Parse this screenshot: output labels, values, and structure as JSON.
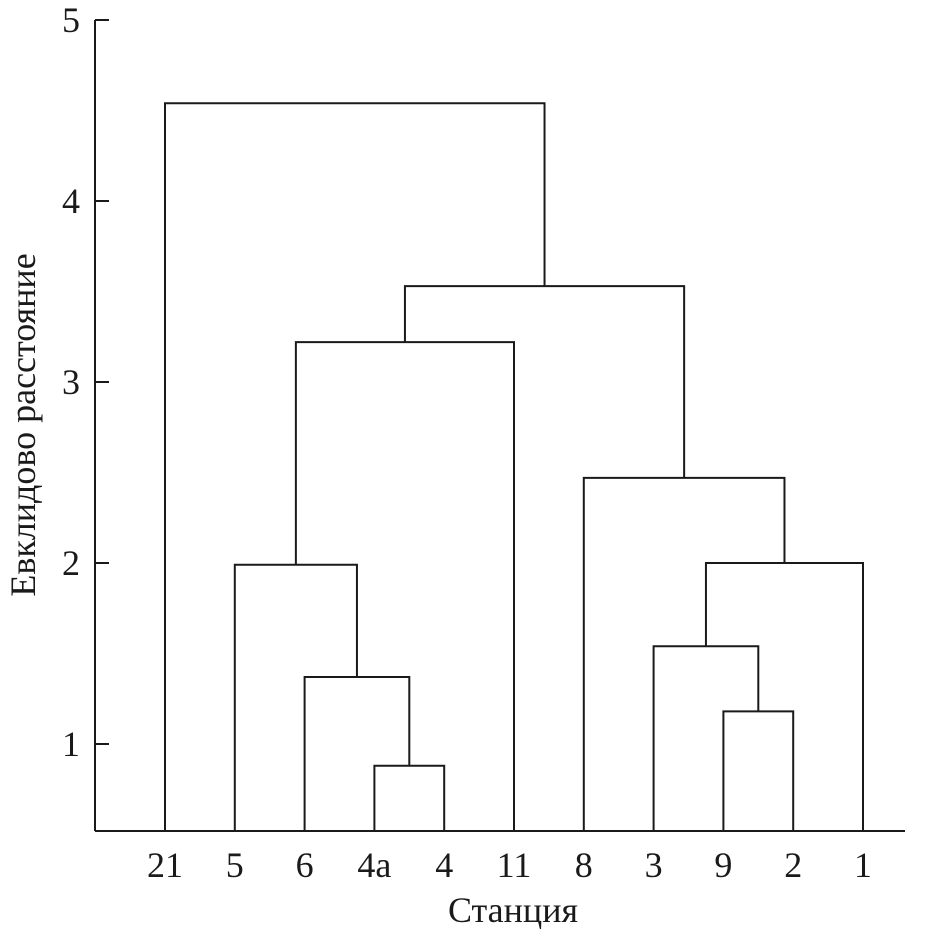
{
  "chart_data": {
    "type": "dendrogram",
    "xlabel": "Станция",
    "ylabel": "Евклидово расстояние",
    "ylim": [
      0.5,
      5
    ],
    "yticks": [
      1,
      2,
      3,
      4,
      5
    ],
    "leaves": [
      "21",
      "5",
      "6",
      "4а",
      "4",
      "11",
      "8",
      "3",
      "9",
      "2",
      "1"
    ],
    "merges": [
      {
        "id": "c1",
        "left": "4а",
        "right": "4",
        "height": 0.88
      },
      {
        "id": "c2",
        "left": "6",
        "right": "c1",
        "height": 1.37
      },
      {
        "id": "c3",
        "left": "5",
        "right": "c2",
        "height": 1.99
      },
      {
        "id": "c4",
        "left": "c3",
        "right": "11",
        "height": 3.22
      },
      {
        "id": "c5",
        "left": "9",
        "right": "2",
        "height": 1.18
      },
      {
        "id": "c6",
        "left": "3",
        "right": "c5",
        "height": 1.54
      },
      {
        "id": "c7",
        "left": "c6",
        "right": "1",
        "height": 2.0
      },
      {
        "id": "c8",
        "left": "8",
        "right": "c7",
        "height": 2.47
      },
      {
        "id": "c9",
        "left": "c4",
        "right": "c8",
        "height": 3.53
      },
      {
        "id": "c10",
        "left": "21",
        "right": "c9",
        "height": 4.54
      }
    ]
  }
}
